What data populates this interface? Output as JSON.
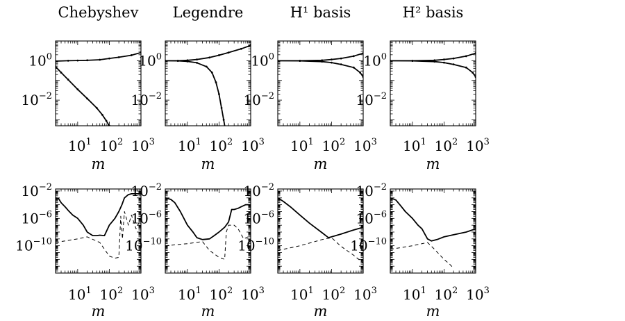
{
  "titles": [
    "Chebyshev",
    "Legendre",
    "H¹ basis",
    "H² basis"
  ],
  "chart_data": [
    {
      "type": "line",
      "panel": "Chebyshev",
      "row": 1,
      "title": "Chebyshev",
      "xlabel": "m",
      "ylabel": "",
      "xscale": "log",
      "yscale": "log",
      "xlim": [
        2,
        1000
      ],
      "ylim": [
        0.0005,
        10
      ],
      "xticks": [
        "10^1",
        "10^2",
        "10^3"
      ],
      "yticks": [
        "10^0",
        "10^-2"
      ],
      "series": [
        {
          "style": "solid-dotted",
          "x": [
            2,
            5,
            10,
            20,
            50,
            100,
            200,
            500,
            1000
          ],
          "y": [
            0.95,
            1.0,
            1.02,
            1.05,
            1.12,
            1.3,
            1.5,
            1.9,
            2.6
          ]
        },
        {
          "style": "solid-dotted",
          "x": [
            2,
            3,
            5,
            10,
            20,
            40,
            60,
            80,
            100,
            120
          ],
          "y": [
            0.5,
            0.25,
            0.11,
            0.035,
            0.012,
            0.004,
            0.0018,
            0.0009,
            0.0005,
            0.0002
          ]
        }
      ]
    },
    {
      "type": "line",
      "panel": "Legendre",
      "row": 1,
      "title": "Legendre",
      "xlabel": "m",
      "ylabel": "",
      "xscale": "log",
      "yscale": "log",
      "xlim": [
        2,
        1000
      ],
      "ylim": [
        0.0005,
        10
      ],
      "xticks": [
        "10^1",
        "10^2",
        "10^3"
      ],
      "yticks": [
        "10^0",
        "10^-2"
      ],
      "series": [
        {
          "style": "solid-dotted",
          "x": [
            2,
            5,
            10,
            20,
            50,
            100,
            200,
            500,
            1000
          ],
          "y": [
            1.0,
            1.0,
            1.05,
            1.15,
            1.45,
            1.9,
            2.6,
            4.0,
            6.0
          ]
        },
        {
          "style": "solid-dotted",
          "x": [
            2,
            5,
            10,
            20,
            40,
            60,
            80,
            100,
            120,
            140,
            160
          ],
          "y": [
            1.0,
            0.98,
            0.92,
            0.78,
            0.5,
            0.25,
            0.08,
            0.02,
            0.004,
            0.001,
            0.0003
          ]
        }
      ]
    },
    {
      "type": "line",
      "panel": "H¹ basis",
      "row": 1,
      "title": "H¹ basis",
      "xlabel": "m",
      "ylabel": "",
      "xscale": "log",
      "yscale": "log",
      "xlim": [
        2,
        1000
      ],
      "ylim": [
        0.0005,
        10
      ],
      "xticks": [
        "10^1",
        "10^2",
        "10^3"
      ],
      "yticks": [
        "10^0",
        "10^-2"
      ],
      "series": [
        {
          "style": "solid-dotted",
          "x": [
            2,
            10,
            50,
            100,
            200,
            500,
            1000
          ],
          "y": [
            1.0,
            1.0,
            1.05,
            1.15,
            1.3,
            1.7,
            2.4
          ]
        },
        {
          "style": "solid-dotted",
          "x": [
            2,
            10,
            50,
            100,
            200,
            500,
            800,
            1000
          ],
          "y": [
            1.0,
            0.98,
            0.9,
            0.8,
            0.65,
            0.45,
            0.25,
            0.15
          ]
        }
      ]
    },
    {
      "type": "line",
      "panel": "H² basis",
      "row": 1,
      "title": "H² basis",
      "xlabel": "m",
      "ylabel": "",
      "xscale": "log",
      "yscale": "log",
      "xlim": [
        2,
        1000
      ],
      "ylim": [
        0.0005,
        10
      ],
      "xticks": [
        "10^1",
        "10^2",
        "10^3"
      ],
      "yticks": [
        "10^0",
        "10^-2"
      ],
      "series": [
        {
          "style": "solid-dotted",
          "x": [
            2,
            10,
            50,
            100,
            200,
            500,
            1000
          ],
          "y": [
            1.0,
            1.0,
            1.05,
            1.15,
            1.3,
            1.7,
            2.4
          ]
        },
        {
          "style": "solid-dotted",
          "x": [
            2,
            10,
            50,
            100,
            200,
            500,
            800,
            1000
          ],
          "y": [
            1.0,
            0.98,
            0.9,
            0.8,
            0.65,
            0.45,
            0.25,
            0.15
          ]
        }
      ]
    },
    {
      "type": "line",
      "panel": "Chebyshev",
      "row": 2,
      "title": "",
      "xlabel": "m",
      "ylabel": "",
      "xscale": "log",
      "yscale": "log",
      "xlim": [
        2,
        1000
      ],
      "ylim": [
        1e-14,
        0.02
      ],
      "xticks": [
        "10^1",
        "10^2",
        "10^3"
      ],
      "yticks": [
        "10^-2",
        "10^-6",
        "10^-10"
      ],
      "series": [
        {
          "style": "solid",
          "x": [
            2,
            2.5,
            3,
            4,
            5,
            7,
            10,
            15,
            20,
            30,
            40,
            50,
            70,
            100,
            150,
            200,
            250,
            300,
            400,
            500,
            700,
            1000
          ],
          "y": [
            0.001,
            0.0008,
            0.0002,
            5e-05,
            1.5e-05,
            3e-06,
            1e-06,
            1e-07,
            1e-08,
            3e-09,
            3e-09,
            3.5e-09,
            3e-09,
            1e-07,
            1e-06,
            1e-05,
            0.0001,
            0.001,
            0.003,
            0.004,
            0.004,
            0.004
          ]
        },
        {
          "style": "dashed",
          "x": [
            2,
            10,
            20,
            50,
            100,
            150,
            200,
            230,
            260,
            300,
            400,
            500,
            700,
            1000
          ],
          "y": [
            3e-10,
            1e-09,
            2e-09,
            3e-10,
            3e-12,
            1.5e-12,
            2e-12,
            2e-06,
            1e-09,
            1e-05,
            1e-07,
            3e-06,
            3e-08,
            1e-06
          ]
        }
      ]
    },
    {
      "type": "line",
      "panel": "Legendre",
      "row": 2,
      "title": "",
      "xlabel": "m",
      "ylabel": "",
      "xscale": "log",
      "yscale": "log",
      "xlim": [
        2,
        1000
      ],
      "ylim": [
        1e-14,
        0.02
      ],
      "xticks": [
        "10^1",
        "10^2",
        "10^3"
      ],
      "yticks": [
        "10^-2",
        "10^-6",
        "10^-10"
      ],
      "series": [
        {
          "style": "solid",
          "x": [
            2,
            3,
            4,
            6,
            10,
            15,
            20,
            30,
            50,
            70,
            100,
            150,
            200,
            250,
            300,
            400,
            500,
            700,
            1000
          ],
          "y": [
            0.001,
            0.0006,
            0.0002,
            1e-05,
            1e-07,
            1e-08,
            1.5e-09,
            8e-10,
            1e-09,
            3e-09,
            1e-08,
            5e-08,
            3e-07,
            2e-05,
            2e-05,
            3e-05,
            5e-05,
            0.0001,
            0.0001
          ]
        },
        {
          "style": "dashed",
          "x": [
            2,
            10,
            30,
            50,
            100,
            150,
            170,
            200,
            300,
            400,
            600,
            1000
          ],
          "y": [
            1e-10,
            2e-10,
            4e-10,
            2e-11,
            2e-12,
            1e-12,
            1e-08,
            1e-07,
            1e-07,
            3e-08,
            1e-09,
            3e-09
          ]
        }
      ]
    },
    {
      "type": "line",
      "panel": "H¹ basis",
      "row": 2,
      "title": "",
      "xlabel": "m",
      "ylabel": "",
      "xscale": "log",
      "yscale": "log",
      "xlim": [
        2,
        1000
      ],
      "ylim": [
        1e-14,
        0.02
      ],
      "xticks": [
        "10^1",
        "10^2",
        "10^3"
      ],
      "yticks": [
        "10^-2",
        "10^-6",
        "10^-10"
      ],
      "series": [
        {
          "style": "solid",
          "x": [
            2,
            3,
            5,
            10,
            20,
            50,
            80,
            100,
            200,
            500,
            1000
          ],
          "y": [
            0.001,
            0.0003,
            5e-05,
            3e-06,
            2e-07,
            8e-09,
            1.5e-09,
            2e-09,
            5e-09,
            2e-08,
            5e-08
          ]
        },
        {
          "style": "dashed",
          "x": [
            2,
            10,
            50,
            100,
            200,
            500,
            1000
          ],
          "y": [
            2e-11,
            1e-10,
            8e-10,
            1.5e-09,
            8e-11,
            4e-12,
            3e-13
          ]
        }
      ]
    },
    {
      "type": "line",
      "panel": "H² basis",
      "row": 2,
      "title": "",
      "xlabel": "m",
      "ylabel": "",
      "xscale": "log",
      "yscale": "log",
      "xlim": [
        2,
        1000
      ],
      "ylim": [
        1e-14,
        0.02
      ],
      "xticks": [
        "10^1",
        "10^2",
        "10^3"
      ],
      "yticks": [
        "10^-2",
        "10^-6",
        "10^-10"
      ],
      "series": [
        {
          "style": "solid",
          "x": [
            2,
            3,
            4,
            6,
            10,
            15,
            20,
            30,
            40,
            60,
            100,
            200,
            500,
            1000
          ],
          "y": [
            0.001,
            0.0005,
            0.0001,
            1e-05,
            1e-06,
            1e-07,
            3e-08,
            1e-09,
            5e-10,
            8e-10,
            2e-09,
            4e-09,
            1e-08,
            3e-08
          ]
        },
        {
          "style": "dashed",
          "x": [
            2,
            10,
            20,
            30,
            50,
            100,
            150,
            200
          ],
          "y": [
            3e-11,
            1e-10,
            2e-10,
            3e-10,
            3e-11,
            1e-12,
            2e-13,
            5e-14
          ]
        }
      ]
    }
  ]
}
